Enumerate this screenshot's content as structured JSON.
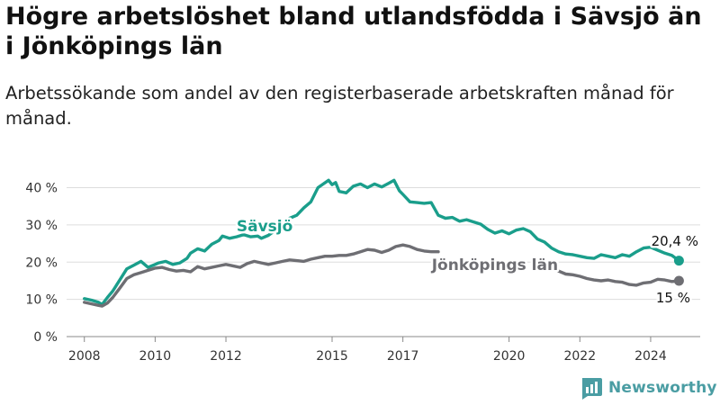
{
  "title": "Högre arbetslöshet bland utlandsfödda i Sävsjö än i Jönköpings län",
  "subtitle": "Arbetssökande som andel av den registerbaserade arbetskraften månad för månad.",
  "brand": "Newsworthy",
  "colors": {
    "savsjo": "#1a9e8b",
    "lan": "#6e6e73",
    "grid": "#dddddd",
    "axis": "#888888",
    "brand": "#4a9da3"
  },
  "chart_data": {
    "type": "line",
    "title": "Högre arbetslöshet bland utlandsfödda i Sävsjö än i Jönköpings län",
    "subtitle": "Arbetssökande som andel av den registerbaserade arbetskraften månad för månad.",
    "x_ticks": [
      2008,
      2010,
      2012,
      2015,
      2017,
      2020,
      2022,
      2024
    ],
    "y_ticks": [
      0,
      10,
      20,
      30,
      40
    ],
    "y_tick_labels": [
      "0 %",
      "10 %",
      "20 %",
      "30 %",
      "40 %"
    ],
    "xlim": [
      2007.6,
      2025.4
    ],
    "ylim": [
      0,
      44
    ],
    "grid": "horizontal",
    "series": [
      {
        "name": "Sävsjö",
        "end_label": "20,4 %",
        "x": [
          2008.0,
          2008.2,
          2008.4,
          2008.5,
          2008.65,
          2008.8,
          2009.0,
          2009.2,
          2009.4,
          2009.6,
          2009.8,
          2010.0,
          2010.1,
          2010.3,
          2010.5,
          2010.7,
          2010.9,
          2011.0,
          2011.2,
          2011.4,
          2011.6,
          2011.8,
          2011.9,
          2012.1,
          2012.3,
          2012.5,
          2012.7,
          2012.9,
          2013.0,
          2013.2,
          2013.4,
          2013.6,
          2013.8,
          2014.0,
          2014.2,
          2014.4,
          2014.6,
          2014.75,
          2014.9,
          2015.0,
          2015.1,
          2015.2,
          2015.4,
          2015.6,
          2015.8,
          2016.0,
          2016.2,
          2016.4,
          2016.6,
          2016.75,
          2016.9,
          2017.0,
          2017.2,
          2017.4,
          2017.6,
          2017.8,
          2018.0,
          2018.2,
          2018.4,
          2018.6,
          2018.8,
          2019.0,
          2019.2,
          2019.4,
          2019.6,
          2019.8,
          2020.0,
          2020.2,
          2020.4,
          2020.6,
          2020.8,
          2021.0,
          2021.2,
          2021.4,
          2021.6,
          2021.8,
          2022.0,
          2022.2,
          2022.4,
          2022.6,
          2022.8,
          2023.0,
          2023.2,
          2023.4,
          2023.6,
          2023.8,
          2024.0,
          2024.2,
          2024.4,
          2024.6,
          2024.8
        ],
        "y": [
          10.2,
          9.8,
          9.2,
          8.6,
          10.5,
          12.2,
          15.2,
          18.2,
          19.2,
          20.2,
          18.6,
          19.4,
          19.8,
          20.2,
          19.4,
          19.8,
          21.0,
          22.4,
          23.6,
          23.0,
          24.8,
          25.8,
          27.0,
          26.4,
          26.8,
          27.4,
          26.8,
          27.0,
          26.4,
          27.2,
          28.6,
          30.4,
          31.8,
          32.6,
          34.6,
          36.2,
          40.0,
          41.0,
          42.0,
          40.8,
          41.4,
          39.0,
          38.6,
          40.4,
          41.0,
          40.0,
          41.0,
          40.2,
          41.2,
          42.0,
          39.2,
          38.2,
          36.2,
          36.0,
          35.8,
          36.0,
          32.6,
          31.8,
          32.0,
          31.0,
          31.4,
          30.8,
          30.2,
          28.8,
          27.8,
          28.4,
          27.6,
          28.6,
          29.0,
          28.2,
          26.2,
          25.4,
          23.8,
          22.8,
          22.2,
          22.0,
          21.6,
          21.2,
          21.0,
          22.0,
          21.6,
          21.2,
          22.0,
          21.6,
          22.8,
          23.8,
          24.0,
          23.2,
          22.4,
          21.8,
          20.4
        ]
      },
      {
        "name": "Jönköpings län",
        "end_label": "15 %",
        "x": [
          2008.0,
          2008.2,
          2008.4,
          2008.5,
          2008.65,
          2008.8,
          2009.0,
          2009.2,
          2009.4,
          2009.6,
          2009.8,
          2010.0,
          2010.2,
          2010.4,
          2010.6,
          2010.8,
          2011.0,
          2011.2,
          2011.4,
          2011.6,
          2011.8,
          2012.0,
          2012.2,
          2012.4,
          2012.6,
          2012.8,
          2013.0,
          2013.2,
          2013.4,
          2013.6,
          2013.8,
          2014.0,
          2014.2,
          2014.4,
          2014.6,
          2014.8,
          2015.0,
          2015.2,
          2015.4,
          2015.6,
          2015.8,
          2016.0,
          2016.2,
          2016.4,
          2016.6,
          2016.8,
          2017.0,
          2017.2,
          2017.4,
          2017.6,
          2017.8,
          2018.0,
          2021.2,
          2021.4,
          2021.6,
          2021.8,
          2022.0,
          2022.2,
          2022.4,
          2022.6,
          2022.8,
          2023.0,
          2023.2,
          2023.4,
          2023.6,
          2023.8,
          2024.0,
          2024.2,
          2024.4,
          2024.6,
          2024.8
        ],
        "y": [
          9.2,
          8.8,
          8.4,
          8.2,
          9.0,
          10.5,
          13.0,
          15.6,
          16.6,
          17.2,
          17.8,
          18.4,
          18.6,
          18.0,
          17.6,
          17.8,
          17.4,
          18.8,
          18.2,
          18.6,
          19.0,
          19.4,
          19.0,
          18.6,
          19.6,
          20.2,
          19.8,
          19.4,
          19.8,
          20.2,
          20.6,
          20.4,
          20.2,
          20.8,
          21.2,
          21.6,
          21.6,
          21.8,
          21.8,
          22.2,
          22.8,
          23.4,
          23.2,
          22.6,
          23.2,
          24.2,
          24.6,
          24.2,
          23.4,
          23.0,
          22.8,
          22.8,
          18.0,
          17.6,
          16.8,
          16.6,
          16.2,
          15.6,
          15.2,
          15.0,
          15.2,
          14.8,
          14.6,
          14.0,
          13.8,
          14.4,
          14.6,
          15.4,
          15.2,
          14.8,
          15.0
        ]
      }
    ]
  }
}
